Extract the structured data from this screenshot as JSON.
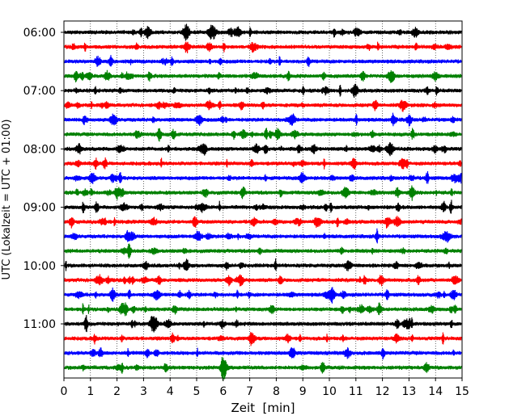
{
  "chart_data": {
    "type": "line",
    "title": "",
    "xlabel": "Zeit  [min]",
    "ylabel": "UTC (Lokalzeit = UTC + 01:00)",
    "xlim": [
      0,
      15
    ],
    "x_ticks": [
      "0",
      "1",
      "2",
      "3",
      "4",
      "5",
      "6",
      "7",
      "8",
      "9",
      "10",
      "11",
      "12",
      "13",
      "14",
      "15"
    ],
    "y_ticks": [
      "06:00",
      "07:00",
      "08:00",
      "09:00",
      "10:00",
      "11:00"
    ],
    "grid": "vertical dotted",
    "row_interval_min": 15,
    "colors": [
      "#000000",
      "#ff0000",
      "#0000ff",
      "#008000"
    ],
    "series": [
      {
        "start": "06:00",
        "color": "#000000"
      },
      {
        "start": "06:15",
        "color": "#ff0000"
      },
      {
        "start": "06:30",
        "color": "#0000ff"
      },
      {
        "start": "06:45",
        "color": "#008000"
      },
      {
        "start": "07:00",
        "color": "#000000"
      },
      {
        "start": "07:15",
        "color": "#ff0000"
      },
      {
        "start": "07:30",
        "color": "#0000ff"
      },
      {
        "start": "07:45",
        "color": "#008000"
      },
      {
        "start": "08:00",
        "color": "#000000"
      },
      {
        "start": "08:15",
        "color": "#ff0000"
      },
      {
        "start": "08:30",
        "color": "#0000ff"
      },
      {
        "start": "08:45",
        "color": "#008000"
      },
      {
        "start": "09:00",
        "color": "#000000"
      },
      {
        "start": "09:15",
        "color": "#ff0000"
      },
      {
        "start": "09:30",
        "color": "#0000ff"
      },
      {
        "start": "09:45",
        "color": "#008000"
      },
      {
        "start": "10:00",
        "color": "#000000"
      },
      {
        "start": "10:15",
        "color": "#ff0000"
      },
      {
        "start": "10:30",
        "color": "#0000ff"
      },
      {
        "start": "10:45",
        "color": "#008000"
      },
      {
        "start": "11:00",
        "color": "#000000"
      },
      {
        "start": "11:15",
        "color": "#ff0000"
      },
      {
        "start": "11:30",
        "color": "#0000ff"
      },
      {
        "start": "11:45",
        "color": "#008000"
      }
    ]
  }
}
